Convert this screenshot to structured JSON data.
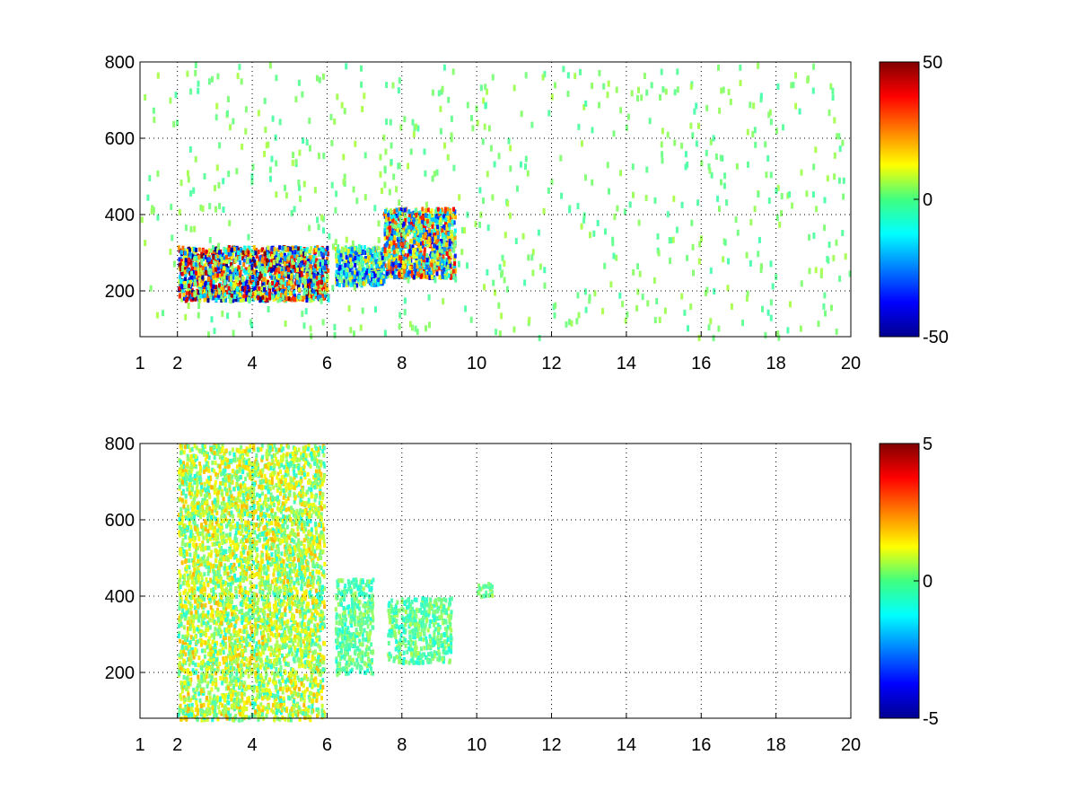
{
  "chart_data": [
    {
      "type": "heatmap",
      "title": "",
      "xlabel": "",
      "ylabel": "",
      "xlim": [
        1,
        20
      ],
      "ylim": [
        80,
        800
      ],
      "x_ticks": [
        "1",
        "2",
        "4",
        "6",
        "8",
        "10",
        "12",
        "14",
        "16",
        "18",
        "20"
      ],
      "x_tick_values": [
        1,
        2,
        4,
        6,
        8,
        10,
        12,
        14,
        16,
        18,
        20
      ],
      "y_ticks": [
        "200",
        "400",
        "600",
        "800"
      ],
      "y_tick_values": [
        200,
        400,
        600,
        800
      ],
      "grid": true,
      "colormap": "jet",
      "colorbar": {
        "min": -50,
        "max": 50,
        "tick_labels": [
          "50",
          "0",
          "-50"
        ],
        "tick_values": [
          50,
          0,
          -50
        ]
      },
      "features": [
        {
          "x": [
            2.0,
            6.0
          ],
          "y": [
            180,
            320
          ],
          "value_range": [
            -50,
            50
          ],
          "description": "strong band, red/blue"
        },
        {
          "x": [
            6.2,
            7.5
          ],
          "y": [
            220,
            320
          ],
          "value_range": [
            -40,
            20
          ]
        },
        {
          "x": [
            7.5,
            9.4
          ],
          "y": [
            240,
            420
          ],
          "value_range": [
            -40,
            40
          ]
        },
        {
          "x": [
            1.0,
            20.0
          ],
          "y": [
            80,
            800
          ],
          "value_range": [
            -5,
            5
          ],
          "description": "sparse near-zero scatter"
        }
      ]
    },
    {
      "type": "heatmap",
      "title": "",
      "xlabel": "",
      "ylabel": "",
      "xlim": [
        1,
        20
      ],
      "ylim": [
        80,
        800
      ],
      "x_ticks": [
        "1",
        "2",
        "4",
        "6",
        "8",
        "10",
        "12",
        "14",
        "16",
        "18",
        "20"
      ],
      "x_tick_values": [
        1,
        2,
        4,
        6,
        8,
        10,
        12,
        14,
        16,
        18,
        20
      ],
      "y_ticks": [
        "200",
        "400",
        "600",
        "800"
      ],
      "y_tick_values": [
        200,
        400,
        600,
        800
      ],
      "grid": true,
      "colormap": "jet",
      "colorbar": {
        "min": -5,
        "max": 5,
        "tick_labels": [
          "5",
          "0",
          "-5"
        ],
        "tick_values": [
          5,
          0,
          -5
        ]
      },
      "features": [
        {
          "x": [
            2.0,
            5.9
          ],
          "y": [
            80,
            800
          ],
          "value_range": [
            -1,
            2
          ]
        },
        {
          "x": [
            6.2,
            7.2
          ],
          "y": [
            200,
            450
          ],
          "value_range": [
            -1,
            0.5
          ]
        },
        {
          "x": [
            7.6,
            9.3
          ],
          "y": [
            230,
            400
          ],
          "value_range": [
            -1,
            0.5
          ]
        },
        {
          "x": [
            10.0,
            10.4
          ],
          "y": [
            400,
            440
          ],
          "value_range": [
            -0.5,
            0.5
          ]
        }
      ]
    }
  ]
}
